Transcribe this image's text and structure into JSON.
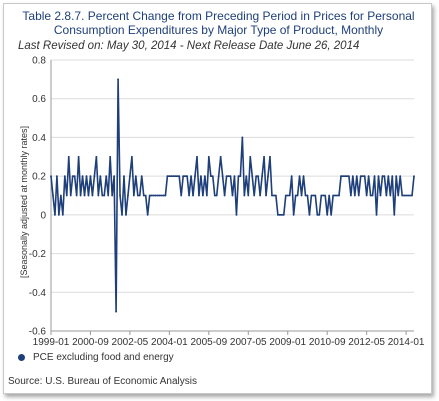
{
  "header": {
    "title_line1": "Table 2.8.7. Percent Change from Preceding Period in Prices for Personal",
    "title_line2": "Consumption Expenditures by Major Type of Product, Monthly",
    "subtitle": "Last Revised on: May 30, 2014 - Next Release Date June 26, 2014"
  },
  "source": "Source: U.S. Bureau of Economic Analysis",
  "colors": {
    "series": "#1f3f7a",
    "title": "#1f3f7a",
    "grid": "#dcdcdc"
  },
  "chart_data": {
    "type": "line",
    "title": "Table 2.8.7. Percent Change from Preceding Period in Prices for Personal Consumption Expenditures by Major Type of Product, Monthly",
    "ylabel": "[Seasonally adjusted at monthly rates]",
    "xlabel": "",
    "ylim": [
      -0.6,
      0.8
    ],
    "yticks": [
      "-0.6",
      "-0.4",
      "-0.2",
      "0",
      "0.2",
      "0.4",
      "0.6",
      "0.8"
    ],
    "xticks": [
      "1999-01",
      "2000-09",
      "2002-05",
      "2004-01",
      "2005-09",
      "2007-05",
      "2009-01",
      "2010-09",
      "2012-05",
      "2014-01"
    ],
    "x_start": "1999-01",
    "x_end": "2014-04",
    "grid": "horizontal",
    "legend_position": "bottom-left",
    "series": [
      {
        "name": "PCE excluding food and energy",
        "values": [
          0.2,
          0.1,
          0.0,
          0.2,
          0.0,
          0.1,
          0.0,
          0.2,
          0.1,
          0.3,
          0.1,
          0.2,
          0.2,
          0.1,
          0.3,
          0.1,
          0.2,
          0.1,
          0.2,
          0.1,
          0.2,
          0.1,
          0.2,
          0.3,
          0.1,
          0.2,
          0.1,
          0.1,
          0.2,
          0.1,
          0.3,
          0.1,
          0.2,
          -0.5,
          0.7,
          0.1,
          0.0,
          0.2,
          0.0,
          0.1,
          0.2,
          0.3,
          0.1,
          0.2,
          0.1,
          0.1,
          0.2,
          0.1,
          0.1,
          0.0,
          0.1,
          0.1,
          0.1,
          0.1,
          0.1,
          0.1,
          0.1,
          0.1,
          0.1,
          0.2,
          0.2,
          0.2,
          0.2,
          0.2,
          0.2,
          0.2,
          0.1,
          0.2,
          0.2,
          0.2,
          0.1,
          0.2,
          0.1,
          0.2,
          0.3,
          0.1,
          0.2,
          0.1,
          0.2,
          0.1,
          0.3,
          0.2,
          0.2,
          0.1,
          0.1,
          0.2,
          0.3,
          0.2,
          0.1,
          0.2,
          0.2,
          0.2,
          0.1,
          0.2,
          0.0,
          0.2,
          0.2,
          0.4,
          0.1,
          0.2,
          0.1,
          0.3,
          0.2,
          0.1,
          0.2,
          0.2,
          0.1,
          0.2,
          0.3,
          0.1,
          0.2,
          0.3,
          0.1,
          0.1,
          0.1,
          0.0,
          0.0,
          0.0,
          0.0,
          0.1,
          0.1,
          0.1,
          0.2,
          0.0,
          0.1,
          0.1,
          0.2,
          0.1,
          0.2,
          0.1,
          0.1,
          0.0,
          0.1,
          0.1,
          0.1,
          0.0,
          0.0,
          0.1,
          0.1,
          0.1,
          0.0,
          0.1,
          0.0,
          0.1,
          0.1,
          0.1,
          0.1,
          0.2,
          0.2,
          0.2,
          0.2,
          0.2,
          0.1,
          0.2,
          0.1,
          0.2,
          0.1,
          0.2,
          0.2,
          0.2,
          0.1,
          0.2,
          0.1,
          0.1,
          0.2,
          0.0,
          0.2,
          0.1,
          0.2,
          0.2,
          0.1,
          0.2,
          0.1,
          0.2,
          0.0,
          0.2,
          0.1,
          0.2,
          0.1,
          0.1,
          0.1,
          0.1,
          0.1,
          0.1,
          0.2
        ]
      }
    ]
  }
}
